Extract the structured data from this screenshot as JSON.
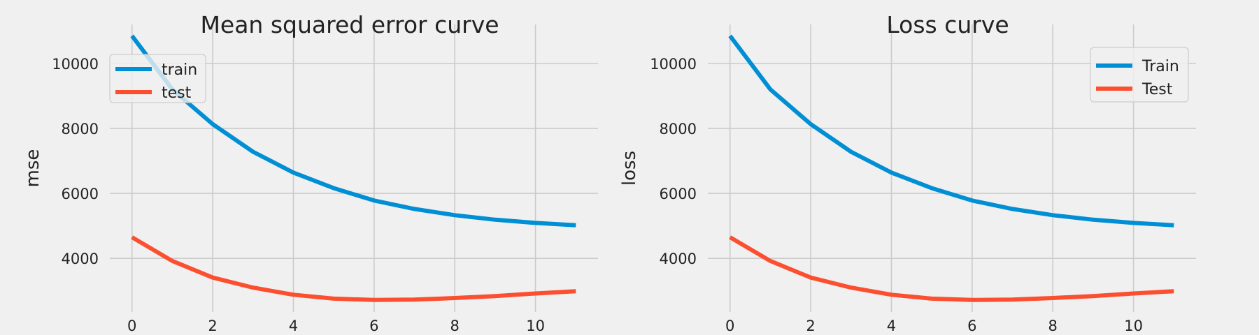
{
  "chart_data": [
    {
      "type": "line",
      "title": "Mean squared error curve",
      "xlabel": "",
      "ylabel": "mse",
      "x": [
        0,
        1,
        2,
        3,
        4,
        5,
        6,
        7,
        8,
        9,
        10,
        11
      ],
      "xlim": [
        -0.55,
        11.55
      ],
      "ylim": [
        2350,
        11200
      ],
      "xticks": [
        0,
        2,
        4,
        6,
        8,
        10
      ],
      "yticks": [
        4000,
        6000,
        8000,
        10000
      ],
      "grid": true,
      "legend_position": "top-left",
      "series": [
        {
          "name": "train",
          "color": "#008fd5",
          "values": [
            10850,
            9200,
            8130,
            7280,
            6640,
            6160,
            5780,
            5520,
            5330,
            5190,
            5090,
            5020
          ]
        },
        {
          "name": "test",
          "color": "#fc4f30",
          "values": [
            4650,
            3920,
            3410,
            3100,
            2880,
            2760,
            2720,
            2730,
            2780,
            2840,
            2920,
            2990
          ]
        }
      ]
    },
    {
      "type": "line",
      "title": "Loss curve",
      "xlabel": "",
      "ylabel": "loss",
      "x": [
        0,
        1,
        2,
        3,
        4,
        5,
        6,
        7,
        8,
        9,
        10,
        11
      ],
      "xlim": [
        -0.55,
        11.55
      ],
      "ylim": [
        2350,
        11200
      ],
      "xticks": [
        0,
        2,
        4,
        6,
        8,
        10
      ],
      "yticks": [
        4000,
        6000,
        8000,
        10000
      ],
      "grid": true,
      "legend_position": "top-right",
      "series": [
        {
          "name": "Train",
          "color": "#008fd5",
          "values": [
            10850,
            9200,
            8130,
            7280,
            6640,
            6160,
            5780,
            5520,
            5330,
            5190,
            5090,
            5020
          ]
        },
        {
          "name": "Test",
          "color": "#fc4f30",
          "values": [
            4650,
            3920,
            3410,
            3100,
            2880,
            2760,
            2720,
            2730,
            2780,
            2840,
            2920,
            2990
          ]
        }
      ]
    }
  ]
}
